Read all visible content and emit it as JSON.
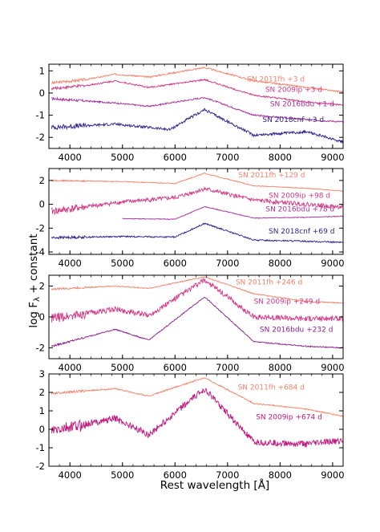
{
  "figure": {
    "xlabel": "Rest wavelength  [Å]",
    "ylabel_main": "log F",
    "ylabel_sub": "λ",
    "ylabel_rest": " + constant"
  },
  "chart_data": [
    {
      "type": "line",
      "panel": 1,
      "xlim": [
        3600,
        9200
      ],
      "ylim": [
        -2.5,
        1.3
      ],
      "xticks": [
        4000,
        5000,
        6000,
        7000,
        8000,
        9000
      ],
      "yticks": [
        -2,
        -1,
        0,
        1
      ],
      "series": [
        {
          "name": "SN 2011fh  +3 d",
          "color": "#f4836c",
          "x": [
            3650,
            4340,
            4861,
            5500,
            6563,
            7500,
            8500,
            9200
          ],
          "y": [
            0.45,
            0.62,
            0.85,
            0.72,
            1.15,
            0.55,
            0.25,
            0.05
          ],
          "label_x": 7920,
          "label_y": 0.52
        },
        {
          "name": "SN 2009ip  +3 d",
          "color": "#d43a86",
          "x": [
            3650,
            4340,
            4861,
            5500,
            6563,
            7500,
            8500,
            9200
          ],
          "y": [
            0.2,
            0.35,
            0.55,
            0.25,
            0.6,
            -0.1,
            -0.4,
            -0.55
          ],
          "label_x": 8260,
          "label_y": 0.05
        },
        {
          "name": "SN 2016bdu  +1 d",
          "color": "#a8329c",
          "x": [
            3650,
            4861,
            5500,
            6563,
            7500,
            8500,
            9200
          ],
          "y": [
            -0.25,
            -0.45,
            -0.6,
            -0.2,
            -1.0,
            -1.2,
            -1.3
          ],
          "label_x": 8420,
          "label_y": -0.6
        },
        {
          "name": "SN 2018cnf  +3 d",
          "color": "#2f1f8c",
          "x": [
            3650,
            4861,
            5900,
            6563,
            7500,
            8500,
            9200
          ],
          "y": [
            -1.55,
            -1.4,
            -1.65,
            -0.75,
            -1.9,
            -1.75,
            -2.2
          ],
          "label_x": 8250,
          "label_y": -1.3
        }
      ]
    },
    {
      "type": "line",
      "panel": 2,
      "xlim": [
        3600,
        9200
      ],
      "ylim": [
        -4.2,
        3.0
      ],
      "xticks": [
        4000,
        5000,
        6000,
        7000,
        8000,
        9000
      ],
      "yticks": [
        -4,
        -2,
        0,
        2
      ],
      "series": [
        {
          "name": "SN 2011fh  +129 d",
          "color": "#f4836c",
          "x": [
            3650,
            5000,
            6000,
            6563,
            7500,
            8500,
            9200
          ],
          "y": [
            2.0,
            1.9,
            1.75,
            2.6,
            1.55,
            1.35,
            1.1
          ],
          "label_x": 7840,
          "label_y": 2.25
        },
        {
          "name": "SN 2009ip  +98 d",
          "color": "#d43a86",
          "x": [
            3650,
            5000,
            6000,
            6563,
            7500,
            8500,
            9200
          ],
          "y": [
            -0.6,
            0.2,
            0.55,
            1.3,
            0.35,
            0.0,
            -0.25
          ],
          "label_x": 8370,
          "label_y": 0.55
        },
        {
          "name": "SN 2016bdu  +78 d",
          "color": "#a8329c",
          "x": [
            5000,
            6000,
            6563,
            7500,
            8500,
            9200
          ],
          "y": [
            -1.2,
            -1.25,
            -0.2,
            -1.15,
            -1.1,
            -1.0
          ],
          "label_x": 8380,
          "label_y": -0.6
        },
        {
          "name": "SN 2018cnf  +69 d",
          "color": "#2f1f8c",
          "x": [
            3650,
            5000,
            6000,
            6563,
            7500,
            8500,
            9200
          ],
          "y": [
            -2.8,
            -2.7,
            -2.75,
            -1.6,
            -3.0,
            -3.1,
            -3.2
          ],
          "label_x": 8410,
          "label_y": -2.45
        }
      ]
    },
    {
      "type": "line",
      "panel": 3,
      "xlim": [
        3600,
        9200
      ],
      "ylim": [
        -2.7,
        2.7
      ],
      "xticks": [
        4000,
        5000,
        6000,
        7000,
        8000,
        9000
      ],
      "yticks": [
        -2,
        0,
        2
      ],
      "series": [
        {
          "name": "SN 2011fh  +246 d",
          "color": "#f4836c",
          "x": [
            3650,
            4861,
            5500,
            6563,
            7500,
            8500,
            9200
          ],
          "y": [
            1.8,
            2.0,
            1.85,
            2.6,
            1.5,
            1.0,
            0.9
          ],
          "label_x": 7790,
          "label_y": 2.1
        },
        {
          "name": "SN 2009ip  +249 d",
          "color": "#d43a86",
          "x": [
            3650,
            4861,
            5500,
            6563,
            7500,
            8500,
            9200
          ],
          "y": [
            -0.1,
            0.5,
            0.1,
            2.4,
            0.0,
            -0.1,
            -0.1
          ],
          "label_x": 8130,
          "label_y": 0.85
        },
        {
          "name": "SN 2016bdu  +232 d",
          "color": "#8a1f8f",
          "x": [
            3650,
            4861,
            5500,
            6563,
            7500,
            8500,
            9200
          ],
          "y": [
            -1.9,
            -0.8,
            -1.5,
            1.3,
            -1.6,
            -1.9,
            -2.0
          ],
          "label_x": 8310,
          "label_y": -0.95
        }
      ]
    },
    {
      "type": "line",
      "panel": 4,
      "xlim": [
        3600,
        9200
      ],
      "ylim": [
        -2.0,
        3.0
      ],
      "xticks": [
        4000,
        5000,
        6000,
        7000,
        8000,
        9000
      ],
      "yticks": [
        -2,
        -1,
        0,
        1,
        2,
        3
      ],
      "series": [
        {
          "name": "SN 2011fh  +684 d",
          "color": "#f4836c",
          "x": [
            3650,
            4861,
            5500,
            6563,
            7500,
            8500,
            9200
          ],
          "y": [
            1.95,
            2.2,
            1.8,
            2.8,
            1.4,
            1.1,
            0.7
          ],
          "label_x": 7830,
          "label_y": 2.15
        },
        {
          "name": "SN 2009ip  +674 d",
          "color": "#c0177e",
          "x": [
            3650,
            4861,
            5500,
            6563,
            7500,
            8500,
            9200
          ],
          "y": [
            -0.1,
            0.6,
            -0.3,
            2.2,
            -0.7,
            -0.8,
            -0.6
          ],
          "label_x": 8170,
          "label_y": 0.55
        }
      ]
    }
  ]
}
